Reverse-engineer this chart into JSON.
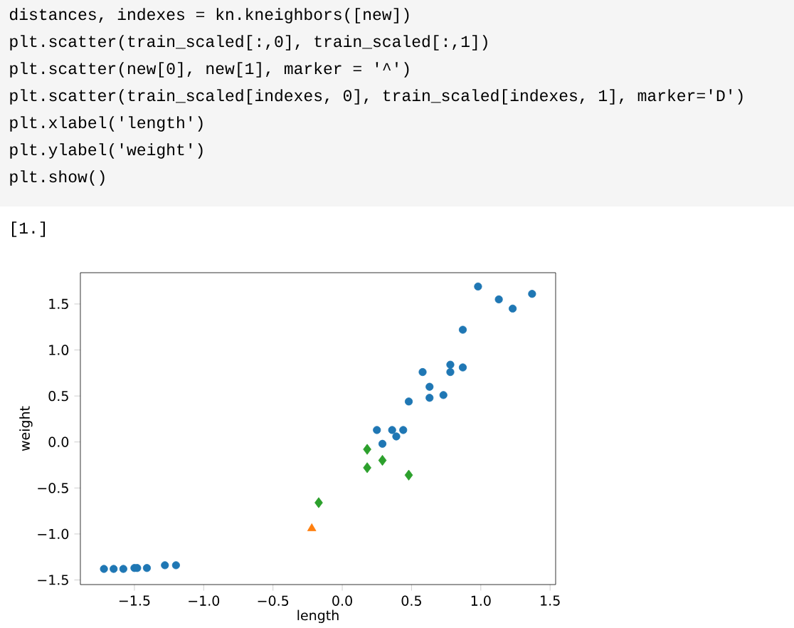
{
  "chart_data": {
    "type": "scatter",
    "xlabel": "length",
    "ylabel": "weight",
    "annotations": [
      "distances, indexes = kn.kneighbors([new])",
      "plt.scatter(train_scaled[:,0], train_scaled[:,1])",
      "plt.scatter(new[0], new[1], marker = '^')",
      "plt.scatter(train_scaled[indexes, 0], train_scaled[indexes, 1], marker='D')",
      "plt.xlabel('length')",
      "plt.ylabel('weight')",
      "plt.show()",
      "[1.]"
    ],
    "xlim": [
      -1.89,
      1.54
    ],
    "ylim": [
      -1.55,
      1.84
    ],
    "xticks": [
      {
        "value": -1.5,
        "label": "−1.5"
      },
      {
        "value": -1,
        "label": "−1.0"
      },
      {
        "value": -0.5,
        "label": "−0.5"
      },
      {
        "value": 0,
        "label": "0.0"
      },
      {
        "value": 0.5,
        "label": "0.5"
      },
      {
        "value": 1,
        "label": "1.0"
      },
      {
        "value": 1.5,
        "label": "1.5"
      }
    ],
    "yticks": [
      {
        "value": -1.5,
        "label": "−1.5"
      },
      {
        "value": -1,
        "label": "−1.0"
      },
      {
        "value": -0.5,
        "label": "−0.5"
      },
      {
        "value": 0,
        "label": "0.0"
      },
      {
        "value": 0.5,
        "label": "0.5"
      },
      {
        "value": 1,
        "label": "1.0"
      },
      {
        "value": 1.5,
        "label": "1.5"
      }
    ],
    "series": [
      {
        "color": "#1f77b4",
        "marker": "circle",
        "x": [
          -1.72,
          -1.65,
          -1.58,
          -1.5,
          -1.48,
          -1.41,
          -1.28,
          -1.2,
          0.25,
          0.29,
          0.36,
          0.39,
          0.44,
          0.48,
          0.58,
          0.63,
          0.63,
          0.73,
          0.78,
          0.78,
          0.87,
          0.87,
          0.98,
          1.13,
          1.23,
          1.37
        ],
        "values": [
          -1.38,
          -1.38,
          -1.38,
          -1.37,
          -1.37,
          -1.37,
          -1.34,
          -1.34,
          0.13,
          -0.02,
          0.13,
          0.06,
          0.13,
          0.44,
          0.76,
          0.6,
          0.48,
          0.51,
          0.84,
          0.76,
          0.81,
          1.22,
          1.69,
          1.55,
          1.45,
          1.61
        ]
      },
      {
        "color": "#ff7f0e",
        "marker": "triangle",
        "x": [
          -0.22
        ],
        "values": [
          -0.94
        ]
      },
      {
        "color": "#2ca02c",
        "marker": "diamond",
        "x": [
          0.18,
          0.18,
          0.29,
          0.48,
          -0.17
        ],
        "values": [
          -0.08,
          -0.28,
          -0.2,
          -0.36,
          -0.66
        ]
      }
    ]
  }
}
